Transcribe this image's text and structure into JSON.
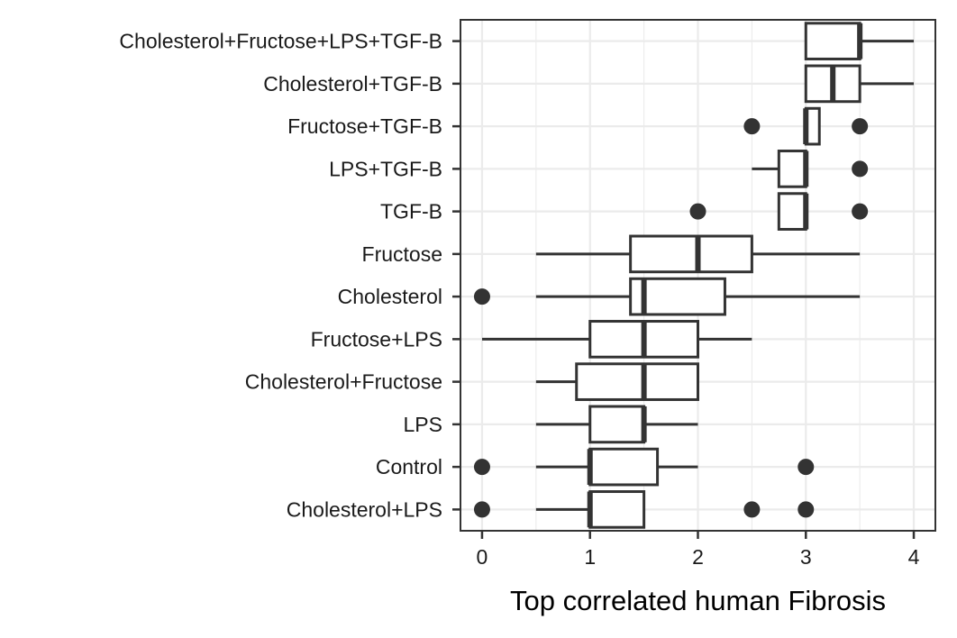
{
  "chart_data": {
    "type": "boxplot",
    "orientation": "horizontal",
    "title": "",
    "xlabel": "Top correlated human Fibrosis",
    "ylabel": "",
    "xlim": [
      -0.2,
      4.2
    ],
    "xticks": [
      0,
      1,
      2,
      3,
      4
    ],
    "grid": true,
    "colors": {
      "box": "#333333",
      "grid": "#ebebeb",
      "panel_border": "#333333",
      "background": "#ffffff"
    },
    "categories": [
      "Cholesterol+Fructose+LPS+TGF-B",
      "Cholesterol+TGF-B",
      "Fructose+TGF-B",
      "LPS+TGF-B",
      "TGF-B",
      "Fructose",
      "Cholesterol",
      "Fructose+LPS",
      "Cholesterol+Fructose",
      "LPS",
      "Control",
      "Cholesterol+LPS"
    ],
    "boxes": [
      {
        "category": "Cholesterol+Fructose+LPS+TGF-B",
        "whisker_low": 3.0,
        "q1": 3.0,
        "median": 3.5,
        "q3": 3.5,
        "whisker_high": 4.0,
        "outliers": []
      },
      {
        "category": "Cholesterol+TGF-B",
        "whisker_low": 3.0,
        "q1": 3.0,
        "median": 3.25,
        "q3": 3.5,
        "whisker_high": 4.0,
        "outliers": []
      },
      {
        "category": "Fructose+TGF-B",
        "whisker_low": 3.0,
        "q1": 3.0,
        "median": 3.0,
        "q3": 3.125,
        "whisker_high": 3.125,
        "outliers": [
          2.5,
          3.5
        ]
      },
      {
        "category": "LPS+TGF-B",
        "whisker_low": 2.5,
        "q1": 2.75,
        "median": 3.0,
        "q3": 3.0,
        "whisker_high": 3.0,
        "outliers": [
          3.5
        ]
      },
      {
        "category": "TGF-B",
        "whisker_low": 2.75,
        "q1": 2.75,
        "median": 3.0,
        "q3": 3.0,
        "whisker_high": 3.0,
        "outliers": [
          2.0,
          3.5
        ]
      },
      {
        "category": "Fructose",
        "whisker_low": 0.5,
        "q1": 1.375,
        "median": 2.0,
        "q3": 2.5,
        "whisker_high": 3.5,
        "outliers": []
      },
      {
        "category": "Cholesterol",
        "whisker_low": 0.5,
        "q1": 1.375,
        "median": 1.5,
        "q3": 2.25,
        "whisker_high": 3.5,
        "outliers": [
          0.0
        ]
      },
      {
        "category": "Fructose+LPS",
        "whisker_low": 0.0,
        "q1": 1.0,
        "median": 1.5,
        "q3": 2.0,
        "whisker_high": 2.5,
        "outliers": []
      },
      {
        "category": "Cholesterol+Fructose",
        "whisker_low": 0.5,
        "q1": 0.875,
        "median": 1.5,
        "q3": 2.0,
        "whisker_high": 2.0,
        "outliers": []
      },
      {
        "category": "LPS",
        "whisker_low": 0.5,
        "q1": 1.0,
        "median": 1.5,
        "q3": 1.5,
        "whisker_high": 2.0,
        "outliers": []
      },
      {
        "category": "Control",
        "whisker_low": 0.5,
        "q1": 1.0,
        "median": 1.0,
        "q3": 1.625,
        "whisker_high": 2.0,
        "outliers": [
          0.0,
          3.0
        ]
      },
      {
        "category": "Cholesterol+LPS",
        "whisker_low": 0.5,
        "q1": 1.0,
        "median": 1.0,
        "q3": 1.5,
        "whisker_high": 1.5,
        "outliers": [
          0.0,
          2.5,
          3.0
        ]
      }
    ]
  }
}
